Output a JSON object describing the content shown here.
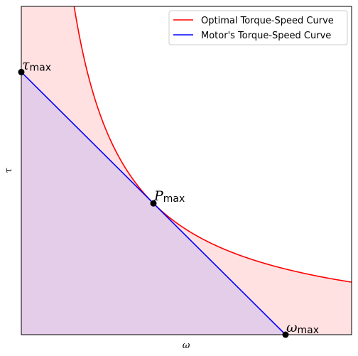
{
  "chart_data": {
    "type": "line",
    "title": "",
    "xlabel": "ω",
    "ylabel": "τ",
    "xlim": [
      0,
      1.25
    ],
    "ylim": [
      0,
      1.25
    ],
    "grid": false,
    "legend_placement": "top-right",
    "series": [
      {
        "name": "Optimal Torque-Speed Curve",
        "color": "#ff0000",
        "function": "tau = 0.25 / omega",
        "x": [
          0.2,
          0.25,
          0.3,
          0.35,
          0.4,
          0.45,
          0.5,
          0.55,
          0.6,
          0.7,
          0.8,
          0.9,
          1.0,
          1.1,
          1.2,
          1.25
        ],
        "y": [
          1.25,
          1.0,
          0.833,
          0.714,
          0.625,
          0.556,
          0.5,
          0.455,
          0.417,
          0.357,
          0.3125,
          0.278,
          0.25,
          0.227,
          0.208,
          0.2
        ]
      },
      {
        "name": "Motor's Torque-Speed Curve",
        "color": "#0000ff",
        "x": [
          0,
          1.0
        ],
        "y": [
          1.0,
          0
        ]
      }
    ],
    "fills": [
      {
        "under": "Optimal Torque-Speed Curve",
        "color": "#ffe1e2"
      },
      {
        "under": "Motor's Torque-Speed Curve",
        "color": "#e4cde8"
      }
    ],
    "points": [
      {
        "x": 0,
        "y": 1.0,
        "label_main": "τ",
        "label_sub": "max"
      },
      {
        "x": 0.5,
        "y": 0.5,
        "label_main": "P",
        "label_sub": "max"
      },
      {
        "x": 1.0,
        "y": 0,
        "label_main": "ω",
        "label_sub": "max"
      }
    ]
  }
}
